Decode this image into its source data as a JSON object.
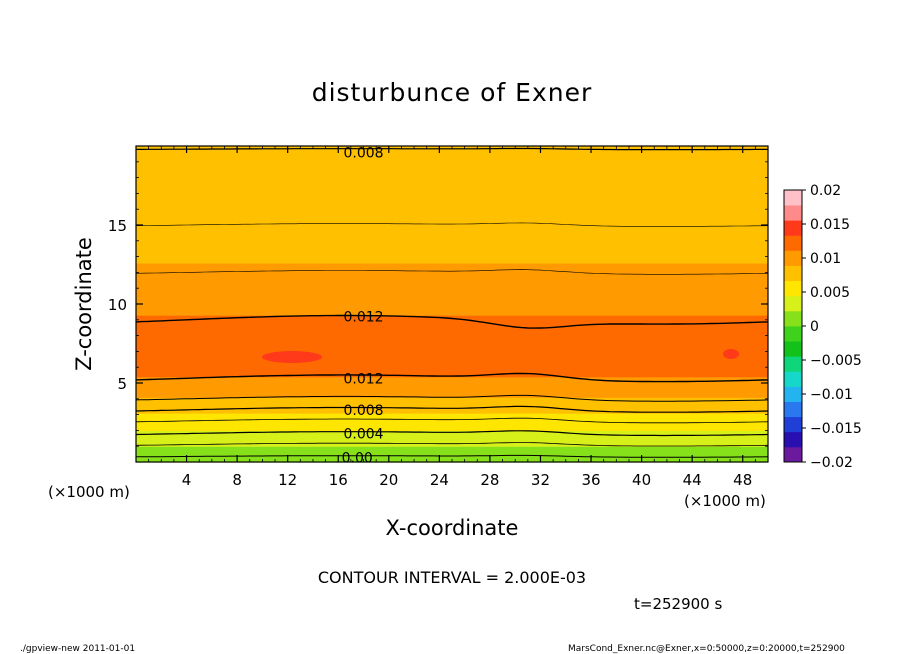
{
  "chart_data": {
    "type": "contour",
    "title": "disturbunce of Exner",
    "xlabel": "X-coordinate",
    "ylabel": "Z-coordinate",
    "x_unit_left": "(×1000 m)",
    "x_unit_right": "(×1000 m)",
    "xlim": [
      0,
      50
    ],
    "ylim": [
      0,
      20
    ],
    "x_ticks": [
      4,
      8,
      12,
      16,
      20,
      24,
      28,
      32,
      36,
      40,
      44,
      48
    ],
    "y_ticks": [
      5,
      10,
      15
    ],
    "contour_interval_text": "CONTOUR INTERVAL = 2.000E-03",
    "time_text": "t=252900 s",
    "contour_labels": [
      {
        "text": "0.008",
        "x": 18,
        "z": 19.6
      },
      {
        "text": "0.012",
        "x": 18,
        "z": 9.2
      },
      {
        "text": "0.012",
        "x": 18,
        "z": 5.3
      },
      {
        "text": "0.008",
        "x": 18,
        "z": 3.3
      },
      {
        "text": "0.004",
        "x": 18,
        "z": 1.8
      },
      {
        "text": "0.00",
        "x": 17.5,
        "z": 0.3
      }
    ],
    "colorbar": {
      "tick_labels": [
        "0.02",
        "0.015",
        "0.01",
        "0.005",
        "0",
        "−0.005",
        "−0.01",
        "−0.015",
        "−0.02"
      ],
      "levels": [
        -0.02,
        -0.0175,
        -0.015,
        -0.0125,
        -0.01,
        -0.0075,
        -0.005,
        -0.0025,
        0,
        0.0025,
        0.005,
        0.0075,
        0.01,
        0.0125,
        0.015,
        0.0175,
        0.02
      ],
      "colors": [
        "#6b1a9e",
        "#2a0fb0",
        "#1f3fd6",
        "#2a78f0",
        "#23b4f0",
        "#16d8c8",
        "#0fd67a",
        "#12c21a",
        "#3fd21c",
        "#86e01a",
        "#d8f01a",
        "#ffe600",
        "#ffc000",
        "#ff9a00",
        "#ff6a00",
        "#ff3a1a",
        "#ff8a8a",
        "#ffc0c8"
      ]
    },
    "field_profile": {
      "z": [
        0,
        0.5,
        1,
        1.5,
        2,
        2.5,
        3,
        3.5,
        4,
        4.5,
        5,
        6,
        7,
        8,
        9,
        10,
        11,
        12,
        13,
        14,
        15,
        16,
        17,
        18,
        19,
        20
      ],
      "value": [
        0.0,
        0.0013,
        0.0026,
        0.0038,
        0.0049,
        0.006,
        0.0072,
        0.0085,
        0.0098,
        0.011,
        0.0121,
        0.0131,
        0.0135,
        0.0134,
        0.0128,
        0.0118,
        0.0111,
        0.0103,
        0.0098,
        0.0093,
        0.0089,
        0.0085,
        0.0083,
        0.0081,
        0.008,
        0.008
      ]
    }
  },
  "footer": {
    "left": "./gpview-new   2011-01-01",
    "right": "MarsCond_Exner.nc@Exner,x=0:50000,z=0:20000,t=252900"
  }
}
